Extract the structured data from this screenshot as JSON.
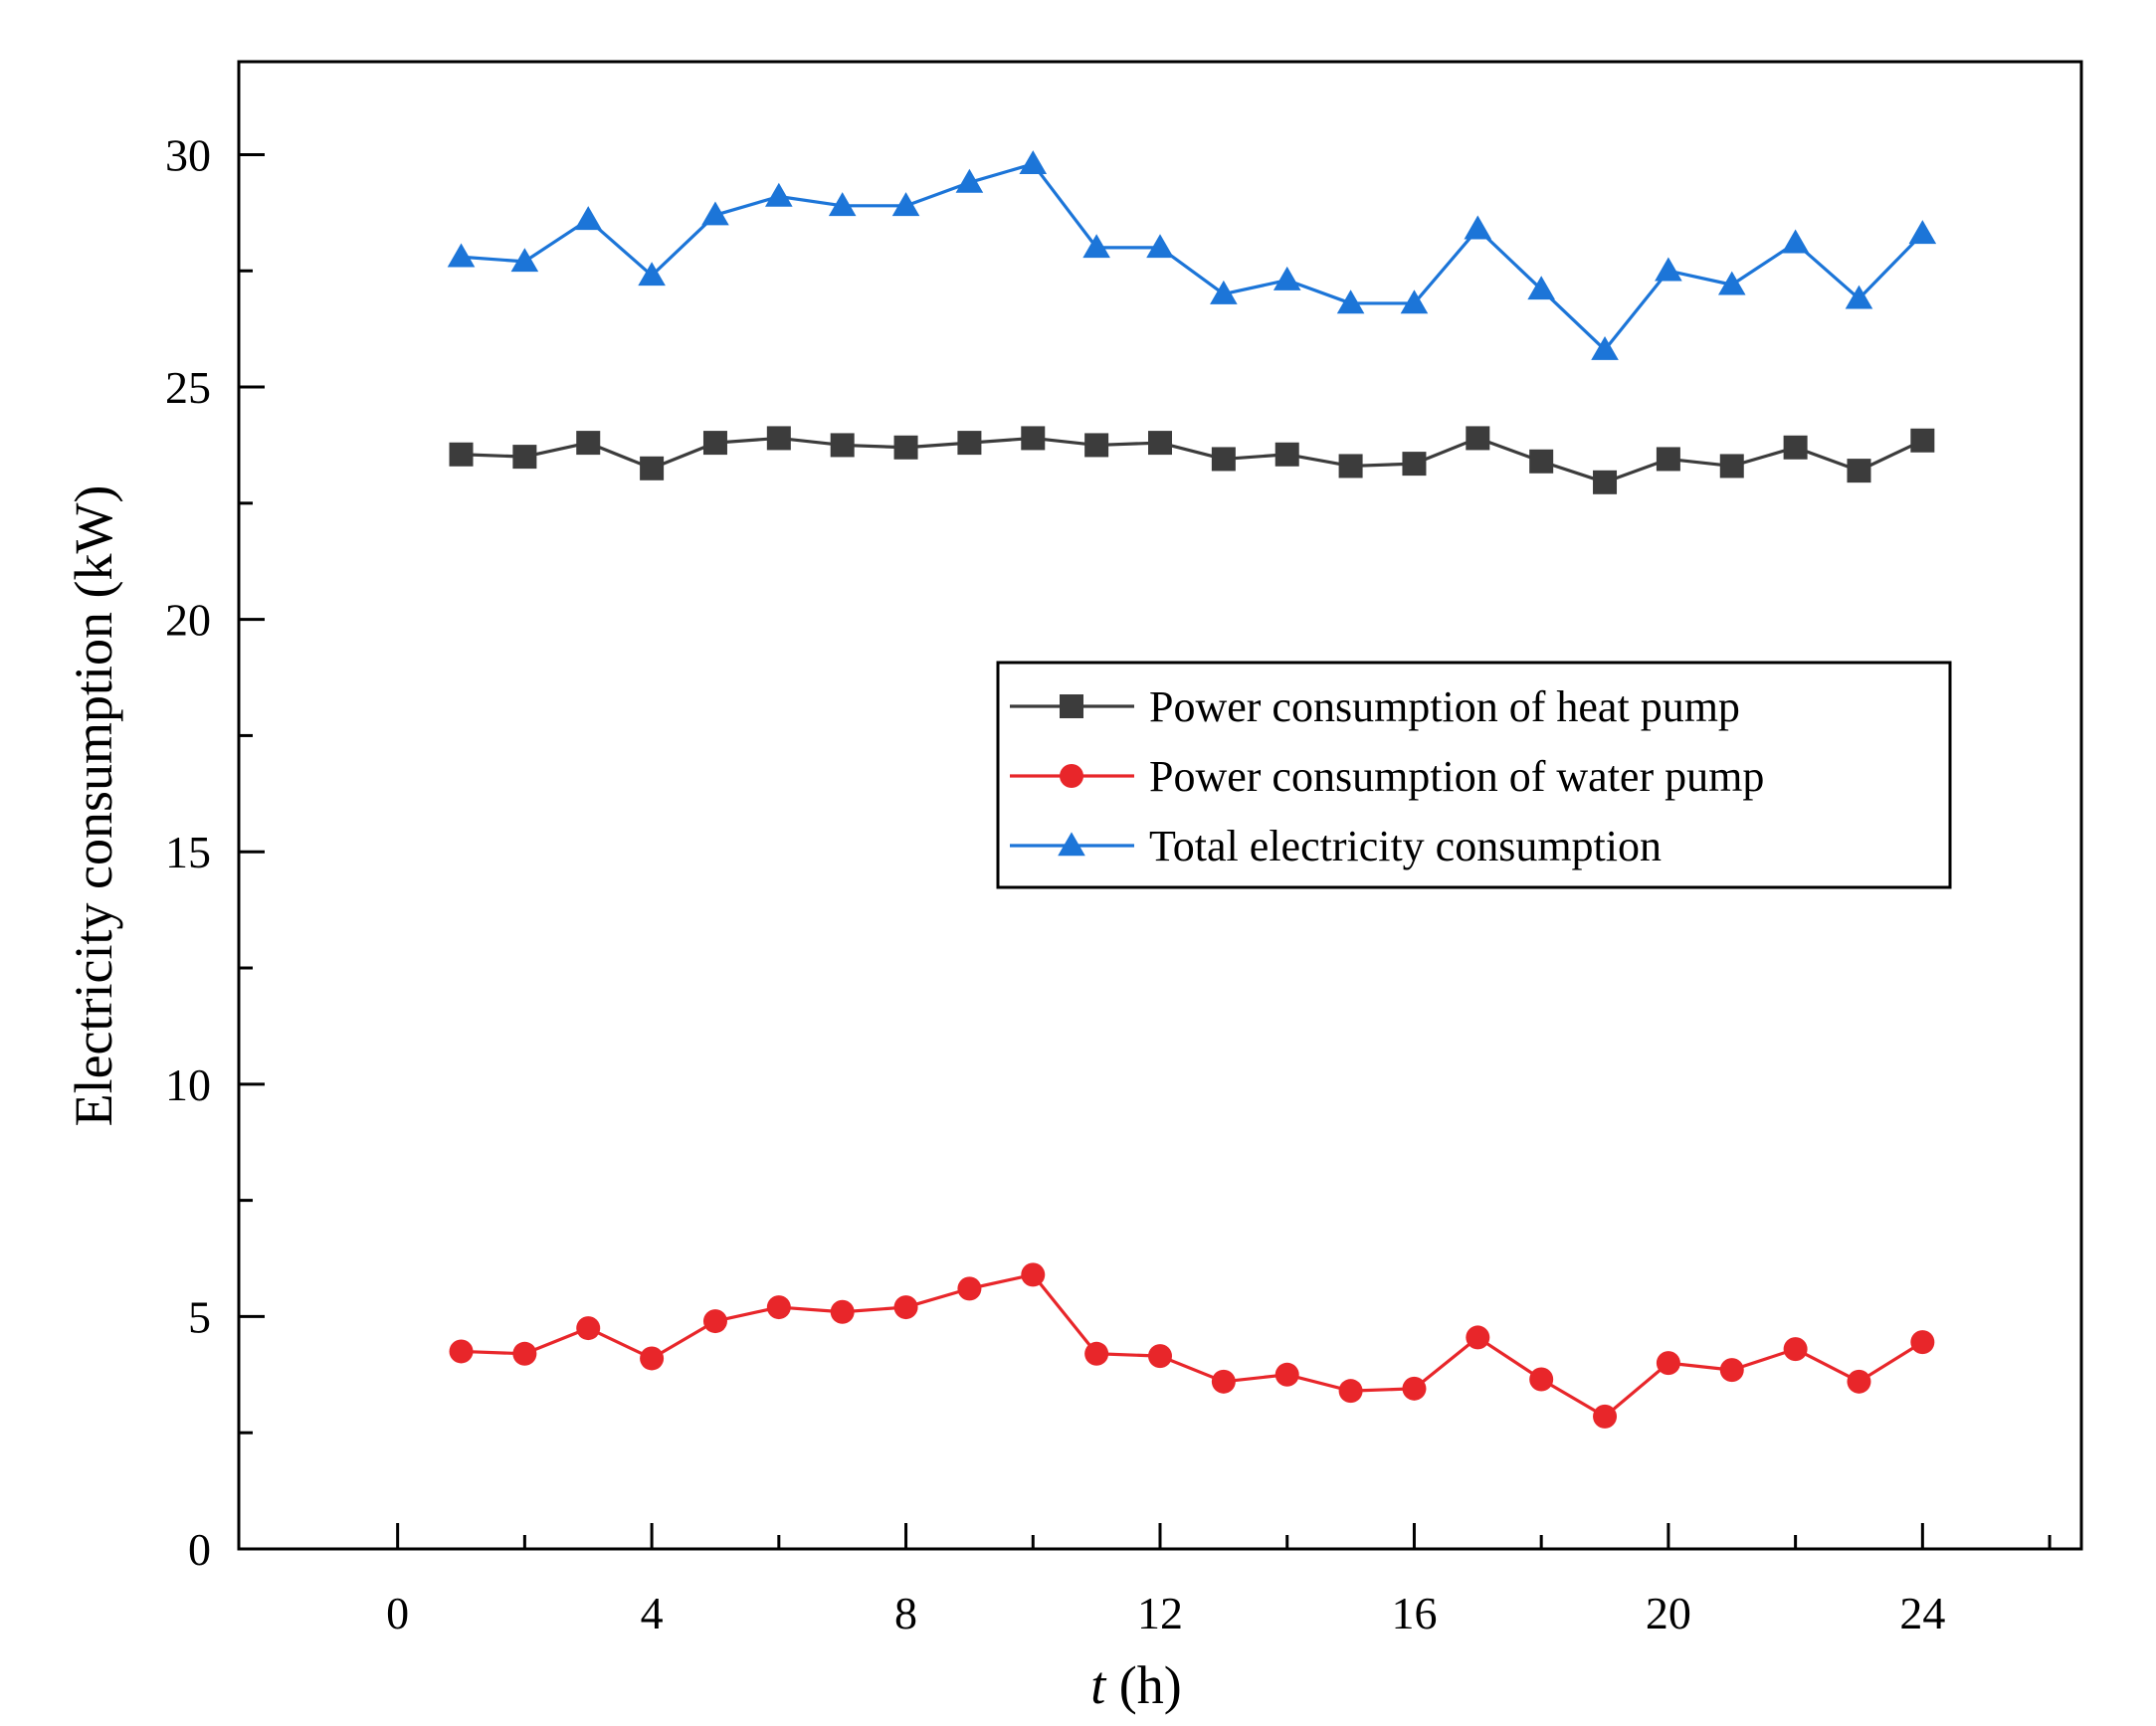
{
  "chart_data": {
    "type": "line",
    "xlabel_italic": "t",
    "xlabel_rest": " (h)",
    "ylabel": "Electricity consumption (kW)",
    "xlim": [
      -2.5,
      26.5
    ],
    "ylim": [
      0,
      32
    ],
    "x_ticks": [
      0,
      4,
      8,
      12,
      16,
      20,
      24
    ],
    "x_ticks_labels": [
      "0",
      "4",
      "8",
      "12",
      "16",
      "20",
      "24"
    ],
    "x_minor_ticks": [
      2,
      6,
      10,
      14,
      18,
      22,
      26
    ],
    "y_ticks": [
      0,
      5,
      10,
      15,
      20,
      25,
      30
    ],
    "y_ticks_labels": [
      "0",
      "5",
      "10",
      "15",
      "20",
      "25",
      "30"
    ],
    "legend_position": "center-right",
    "grid": false,
    "x": [
      1,
      2,
      3,
      4,
      5,
      6,
      7,
      8,
      9,
      10,
      11,
      12,
      13,
      14,
      15,
      16,
      17,
      18,
      19,
      20,
      21,
      22,
      23,
      24
    ],
    "series": [
      {
        "name": "Power consumption of heat pump",
        "color": "#3c3c3c",
        "marker": "square",
        "values": [
          23.55,
          23.5,
          23.8,
          23.25,
          23.8,
          23.9,
          23.75,
          23.7,
          23.8,
          23.9,
          23.75,
          23.8,
          23.45,
          23.55,
          23.3,
          23.35,
          23.9,
          23.4,
          22.95,
          23.45,
          23.3,
          23.7,
          23.2,
          23.85
        ]
      },
      {
        "name": "Power consumption of water pump",
        "color": "#e8262a",
        "marker": "circle",
        "values": [
          4.25,
          4.2,
          4.75,
          4.1,
          4.9,
          5.2,
          5.1,
          5.2,
          5.6,
          5.9,
          4.2,
          4.15,
          3.6,
          3.75,
          3.4,
          3.45,
          4.55,
          3.65,
          2.85,
          4.0,
          3.85,
          4.3,
          3.6,
          4.45
        ]
      },
      {
        "name": "Total electricity consumption",
        "color": "#1c75d8",
        "marker": "triangle",
        "values": [
          27.8,
          27.7,
          28.6,
          27.4,
          28.7,
          29.1,
          28.9,
          28.9,
          29.4,
          29.8,
          28.0,
          28.0,
          27.0,
          27.3,
          26.8,
          26.8,
          28.4,
          27.1,
          25.8,
          27.5,
          27.2,
          28.1,
          26.9,
          28.3
        ]
      }
    ]
  }
}
